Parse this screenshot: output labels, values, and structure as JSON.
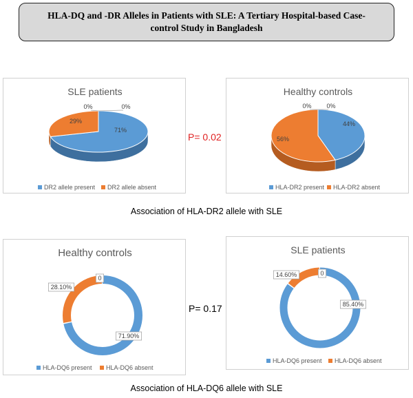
{
  "header": {
    "title": "HLA-DQ and -DR Alleles in Patients with SLE: A Tertiary Hospital-based Case-control Study in Bangladesh"
  },
  "section1": {
    "p_value": "P= 0.02",
    "caption": "Association of HLA-DR2 allele with SLE"
  },
  "section2": {
    "p_value": "P= 0.17",
    "caption": "Association of HLA-DQ6 allele with SLE"
  },
  "colors": {
    "blue": "#5b9bd5",
    "orange": "#ed7d31",
    "p_red": "#e02020"
  },
  "chart_data": [
    {
      "type": "pie",
      "title": "SLE patients",
      "categories": [
        "DR2 allele present",
        "DR2 allele absent"
      ],
      "values": [
        71,
        29
      ],
      "labels": [
        "71%",
        "29%",
        "0%",
        "0%"
      ],
      "legend": "bottom"
    },
    {
      "type": "pie",
      "title": "Healthy controls",
      "categories": [
        "HLA-DR2 present",
        "HLA-DR2 absent"
      ],
      "values": [
        44,
        56
      ],
      "labels": [
        "44%",
        "56%",
        "0%",
        "0%"
      ],
      "legend": "bottom"
    },
    {
      "type": "pie",
      "title": "Healthy controls",
      "categories": [
        "HLA-DQ6 present",
        "HLA-DQ6 absent"
      ],
      "values": [
        71.9,
        28.1
      ],
      "labels": [
        "71.90%",
        "28.10%",
        "0"
      ],
      "legend": "bottom"
    },
    {
      "type": "pie",
      "title": "SLE patients",
      "categories": [
        "HLA-DQ6 present",
        "HLA-DQ6 absent"
      ],
      "values": [
        85.4,
        14.6
      ],
      "labels": [
        "85.40%",
        "14.60%",
        "0"
      ],
      "legend": "bottom"
    }
  ]
}
